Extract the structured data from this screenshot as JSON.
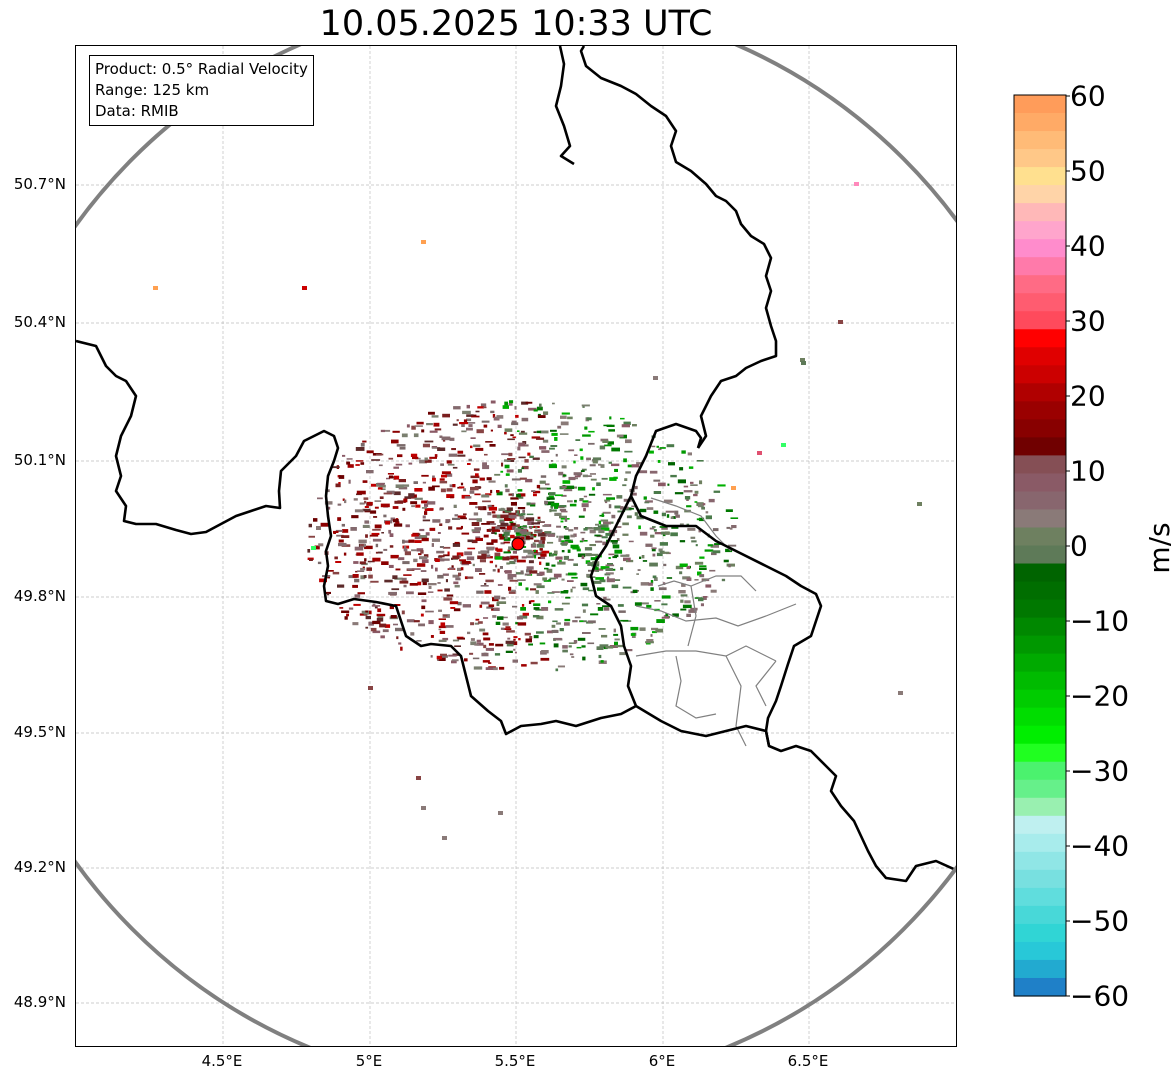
{
  "title": "10.05.2025 10:33 UTC",
  "info_box": {
    "product": "Product: 0.5° Radial Velocity",
    "range": "Range: 125 km",
    "data": "Data: RMIB"
  },
  "map": {
    "lat_ticks": [
      "50.7°N",
      "50.4°N",
      "50.1°N",
      "49.8°N",
      "49.5°N",
      "49.2°N",
      "48.9°N"
    ],
    "lon_ticks": [
      "4.5°E",
      "5°E",
      "5.5°E",
      "6°E",
      "6.5°E"
    ],
    "radar_site": {
      "lon": 5.505,
      "lat": 49.914,
      "color": "#ff0000"
    },
    "range_ring_color": "#808080",
    "border_color": "#000000",
    "province_color": "#808080",
    "grid": true
  },
  "colorbar": {
    "label": "m/s",
    "ticks": [
      "60",
      "50",
      "40",
      "30",
      "20",
      "10",
      "0",
      "−10",
      "−20",
      "−30",
      "−40",
      "−50",
      "−60"
    ],
    "vmin": -60,
    "vmax": 60,
    "colors_top_to_bottom": [
      "#ff9c5a",
      "#ffaa66",
      "#ffbb77",
      "#ffc888",
      "#ffe08f",
      "#ffd4a8",
      "#ffb8b8",
      "#ffa5cc",
      "#ff8ccc",
      "#ff7aaa",
      "#ff6b85",
      "#ff5c70",
      "#ff4a5c",
      "#ff0000",
      "#e00000",
      "#cc0000",
      "#b00000",
      "#9a0000",
      "#880000",
      "#700000",
      "#854f55",
      "#8a5a66",
      "#88666e",
      "#8a7a78",
      "#6e8060",
      "#5e7a58",
      "#006400",
      "#006e00",
      "#007800",
      "#008800",
      "#009800",
      "#00aa00",
      "#00bb00",
      "#00cc00",
      "#00dd00",
      "#00ee00",
      "#20ff20",
      "#4bf26e",
      "#66f08a",
      "#99f0b0",
      "#bff0f0",
      "#a8ecec",
      "#90e6e6",
      "#78e0e0",
      "#60dddd",
      "#48d8d8",
      "#30d5d5",
      "#28c8d8",
      "#22aad0",
      "#1f80c8"
    ]
  }
}
